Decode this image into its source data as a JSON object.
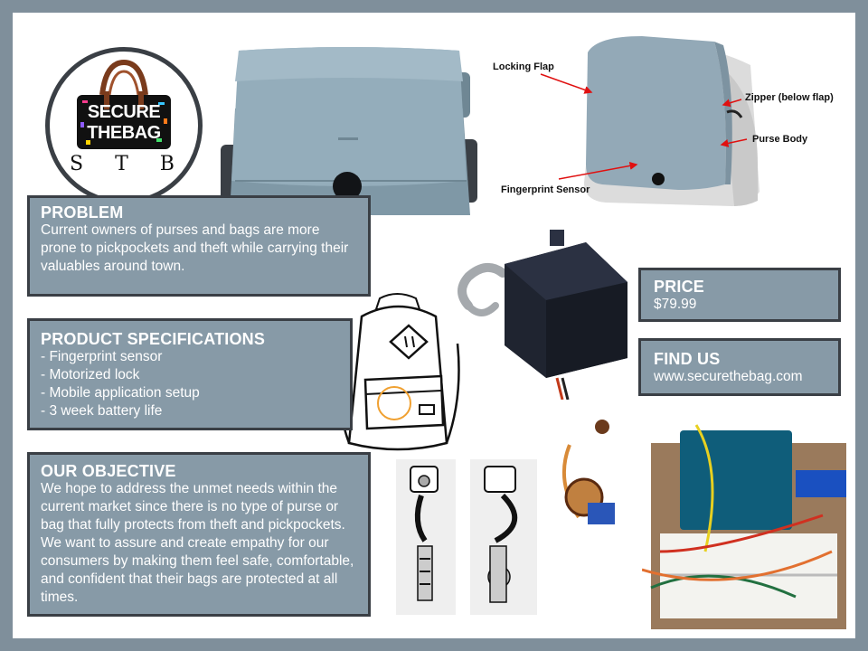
{
  "logo": {
    "line1": "SECURE",
    "line2": "THEBAG",
    "abbrev": "S T B"
  },
  "problem": {
    "title": "PROBLEM",
    "text": "Current owners of purses and bags are more prone to pickpockets and theft while carrying their valuables around town."
  },
  "specs": {
    "title": "PRODUCT SPECIFICATIONS",
    "items": [
      "- Fingerprint sensor",
      "- Motorized lock",
      "- Mobile application setup",
      "- 3 week battery life"
    ]
  },
  "objective": {
    "title": "OUR OBJECTIVE",
    "text": "We hope to address the unmet needs within the current market since there is no type of purse or bag that fully protects from theft and pickpockets. We want to assure and create empathy for our consumers by making them feel safe, comfortable, and confident that their bags are protected at all times."
  },
  "price": {
    "title": "PRICE",
    "value": "$79.99"
  },
  "find_us": {
    "title": "FIND US",
    "url": "www.securethebag.com"
  },
  "callouts": {
    "locking_flap": "Locking Flap",
    "zipper": "Zipper (below flap)",
    "purse_body": "Purse Body",
    "fingerprint_sensor": "Fingerprint Sensor"
  },
  "colors": {
    "box_fill": "#879aa7",
    "box_border": "#3a3f45",
    "frame": "#7f8f9b",
    "bag_blue": "#8aa4b4",
    "arrow_red": "#e01010"
  }
}
